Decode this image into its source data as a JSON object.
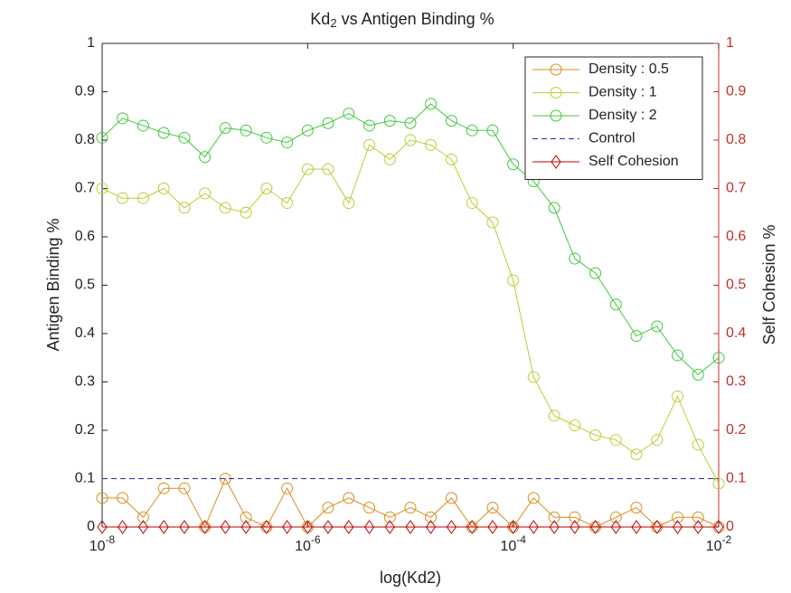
{
  "chart_data": {
    "type": "line",
    "title": [
      "Kd",
      "2",
      " vs Antigen Binding %"
    ],
    "xlabel": "log(Kd2)",
    "ylabel": "Antigen Binding %",
    "y2label": "Self Cohesion %",
    "xscale": "log",
    "x": [
      1e-08,
      1.58e-08,
      2.51e-08,
      3.98e-08,
      6.31e-08,
      1e-07,
      1.58e-07,
      2.51e-07,
      3.98e-07,
      6.31e-07,
      1e-06,
      1.58e-06,
      2.51e-06,
      3.98e-06,
      6.31e-06,
      1e-05,
      1.58e-05,
      2.51e-05,
      3.98e-05,
      6.31e-05,
      0.0001,
      0.000158,
      0.000251,
      0.000398,
      0.000631,
      0.001,
      0.00158,
      0.00251,
      0.00398,
      0.00631,
      0.01
    ],
    "series": [
      {
        "name": "Density : 0.5",
        "color": "#d98c1f",
        "marker": "circle",
        "values": [
          0.06,
          0.06,
          0.02,
          0.08,
          0.08,
          0,
          0.1,
          0.02,
          0,
          0.08,
          0,
          0.04,
          0.06,
          0.04,
          0.02,
          0.04,
          0.02,
          0.06,
          0,
          0.04,
          0,
          0.06,
          0.02,
          0.02,
          0,
          0.02,
          0.04,
          0,
          0.02,
          0.02,
          0
        ]
      },
      {
        "name": "Density : 1",
        "color": "#b2d235",
        "marker": "circle",
        "values": [
          0.7,
          0.68,
          0.68,
          0.7,
          0.66,
          0.69,
          0.66,
          0.65,
          0.7,
          0.67,
          0.74,
          0.74,
          0.67,
          0.79,
          0.76,
          0.8,
          0.79,
          0.76,
          0.67,
          0.63,
          0.51,
          0.31,
          0.23,
          0.21,
          0.19,
          0.18,
          0.15,
          0.18,
          0.27,
          0.17,
          0.09
        ]
      },
      {
        "name": "Density : 2",
        "color": "#3ec83e",
        "marker": "circle",
        "values": [
          0.805,
          0.845,
          0.83,
          0.815,
          0.805,
          0.765,
          0.825,
          0.82,
          0.805,
          0.795,
          0.82,
          0.835,
          0.855,
          0.83,
          0.84,
          0.835,
          0.875,
          0.84,
          0.82,
          0.82,
          0.75,
          0.715,
          0.66,
          0.555,
          0.525,
          0.46,
          0.395,
          0.415,
          0.355,
          0.315,
          0.35
        ]
      },
      {
        "name": "Control",
        "color": "#2a2aa8",
        "dash": true,
        "values": [
          0.1,
          0.1,
          0.1,
          0.1,
          0.1,
          0.1,
          0.1,
          0.1,
          0.1,
          0.1,
          0.1,
          0.1,
          0.1,
          0.1,
          0.1,
          0.1,
          0.1,
          0.1,
          0.1,
          0.1,
          0.1,
          0.1,
          0.1,
          0.1,
          0.1,
          0.1,
          0.1,
          0.1,
          0.1,
          0.1,
          0.1
        ]
      },
      {
        "name": "Self Cohesion",
        "color": "#c00000",
        "marker": "diamond",
        "axis": "y2",
        "values": [
          0,
          0,
          0,
          0,
          0,
          0,
          0,
          0,
          0,
          0,
          0,
          0,
          0,
          0,
          0,
          0,
          0,
          0,
          0,
          0,
          0,
          0,
          0,
          0,
          0,
          0,
          0,
          0,
          0,
          0,
          0
        ]
      }
    ],
    "xlim": [
      1e-08,
      0.01
    ],
    "xticks": [
      {
        "value": 1e-08,
        "label": "10",
        "exponent": "-8"
      },
      {
        "value": 1e-06,
        "label": "10",
        "exponent": "-6"
      },
      {
        "value": 0.0001,
        "label": "10",
        "exponent": "-4"
      },
      {
        "value": 0.01,
        "label": "10",
        "exponent": "-2"
      }
    ],
    "ylim": [
      0,
      1
    ],
    "yticks": [
      0,
      0.1,
      0.2,
      0.3,
      0.4,
      0.5,
      0.6,
      0.7,
      0.8,
      0.9,
      1
    ],
    "y2lim": [
      0,
      1
    ],
    "y2ticks": [
      0,
      0.1,
      0.2,
      0.3,
      0.4,
      0.5,
      0.6,
      0.7,
      0.8,
      0.9,
      1
    ],
    "y2color": "#c0302a",
    "legend": "northeast"
  }
}
